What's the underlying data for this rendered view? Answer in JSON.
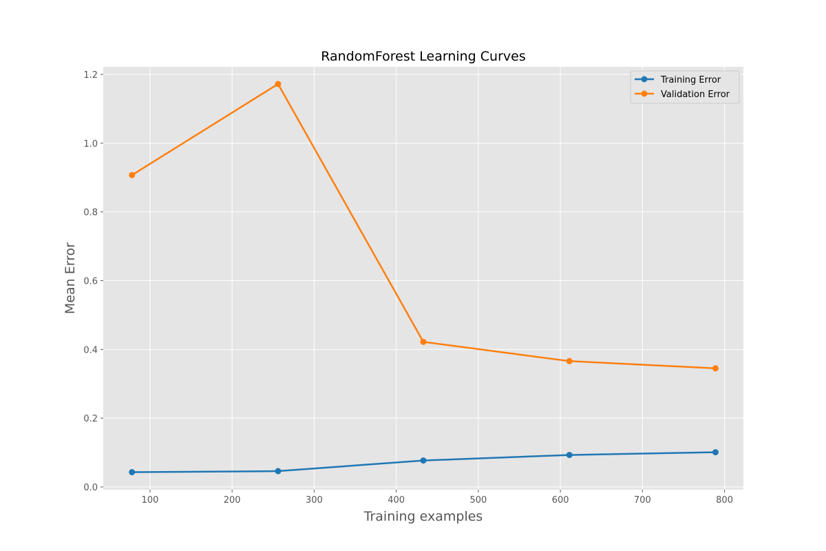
{
  "chart_data": {
    "type": "line",
    "title": "RandomForest Learning Curves",
    "xlabel": "Training examples",
    "ylabel": "Mean Error",
    "xlim": [
      43,
      823
    ],
    "ylim": [
      -0.008,
      1.222
    ],
    "xticks": [
      100,
      200,
      300,
      400,
      500,
      600,
      700,
      800
    ],
    "yticks": [
      0.0,
      0.2,
      0.4,
      0.6,
      0.8,
      1.0,
      1.2
    ],
    "x": [
      78,
      256,
      433,
      611,
      789
    ],
    "series": [
      {
        "name": "Training Error",
        "color": "#1f77b4",
        "values": [
          0.043,
          0.046,
          0.077,
          0.093,
          0.101
        ]
      },
      {
        "name": "Validation Error",
        "color": "#ff7f0e",
        "values": [
          0.907,
          1.172,
          0.422,
          0.366,
          0.345
        ]
      }
    ],
    "grid": true,
    "legend": "top-right",
    "background": "#e5e5e5",
    "grid_color": "#ffffff"
  }
}
